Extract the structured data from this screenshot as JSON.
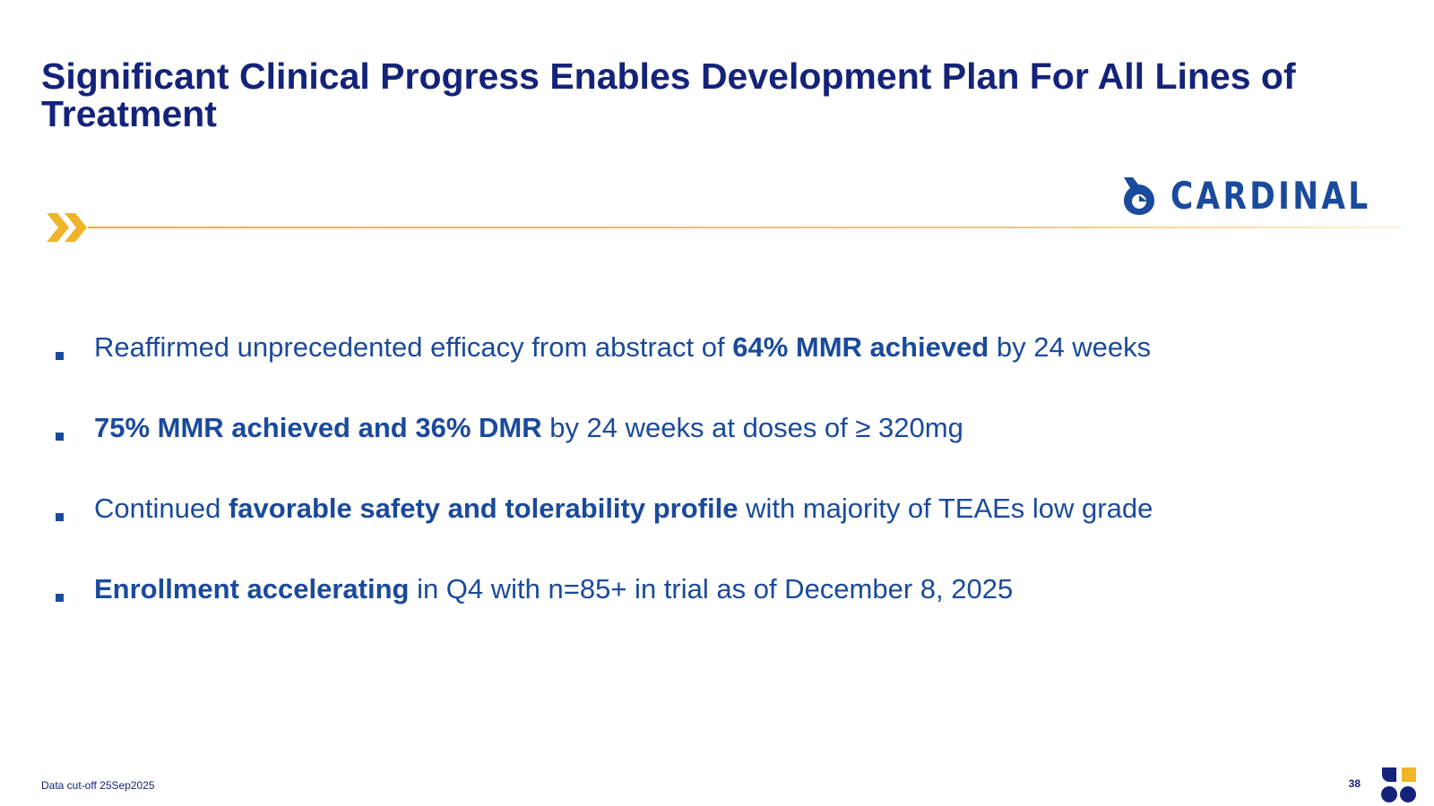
{
  "slide": {
    "title": "Significant Clinical Progress Enables Development Plan For All Lines of Treatment",
    "brand": {
      "name": "CARDINAL",
      "icon": "cardinal-bird-icon",
      "color": "#1a4a9c"
    },
    "accent_color": "#f0b429",
    "bullets": [
      {
        "pre": "Reaffirmed unprecedented efficacy from abstract of ",
        "bold": "64% MMR achieved",
        "post": " by 24 weeks"
      },
      {
        "pre": "",
        "bold": "75% MMR achieved and 36% DMR",
        "post": " by 24 weeks at doses of ≥ 320mg"
      },
      {
        "pre": "Continued ",
        "bold": "favorable safety and tolerability profile",
        "post": " with majority of TEAEs low grade"
      },
      {
        "pre": "",
        "bold": "Enrollment accelerating",
        "post": " in Q4 with n=85+ in trial as of December 8, 2025"
      }
    ],
    "footnote": "Data cut-off 25Sep2025",
    "page_number": "38",
    "corner_logo": "company-mark-icon"
  }
}
